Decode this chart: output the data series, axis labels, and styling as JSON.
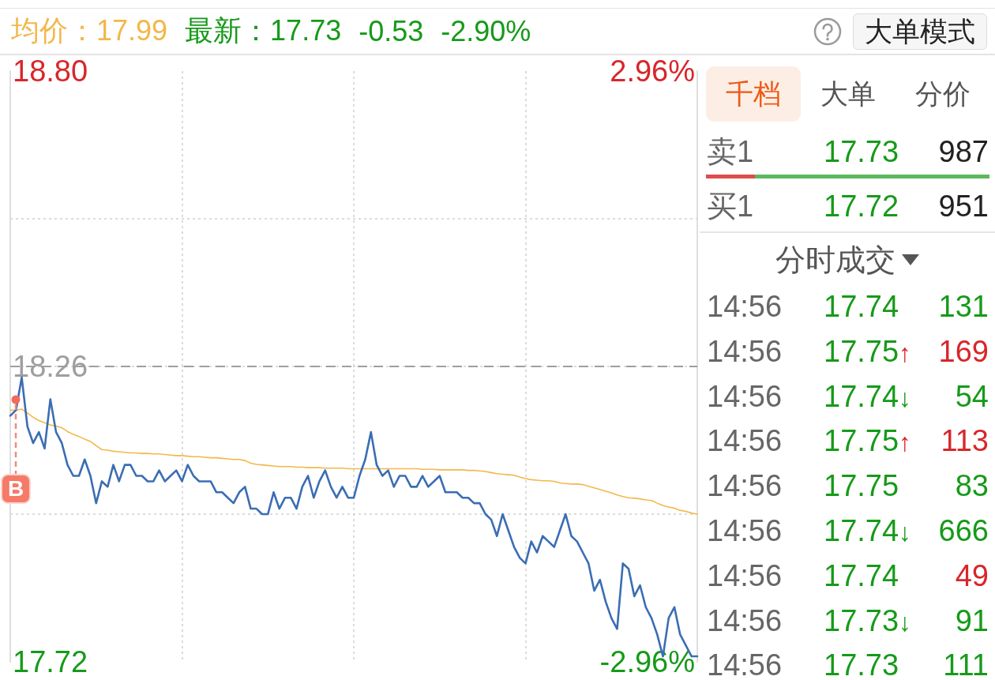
{
  "chart_data": [
    {
      "type": "line",
      "annotations": [
        "均价：17.99",
        "最新：17.73",
        "-0.53",
        "-2.90%",
        {
          "text": "B",
          "y": 18.2
        }
      ],
      "categories": [
        null,
        null,
        null,
        null,
        null,
        null,
        null,
        null,
        null,
        null,
        null,
        null,
        null,
        null,
        null,
        null,
        null,
        null,
        null,
        null,
        null,
        null,
        null,
        null,
        null,
        null,
        null,
        null,
        null,
        null,
        null,
        null,
        null,
        null,
        null,
        null,
        null,
        null,
        null,
        null,
        null,
        null,
        null,
        null,
        null,
        null,
        null,
        null,
        null,
        null,
        null,
        null,
        null,
        null,
        null,
        null,
        null,
        null,
        null,
        null,
        null,
        null,
        null,
        null,
        null,
        null,
        null,
        null,
        null,
        null,
        null,
        null,
        null,
        null,
        null,
        null,
        null,
        null,
        null,
        null,
        null,
        null,
        null,
        null,
        null,
        null,
        null,
        null,
        null,
        null,
        null,
        null,
        null,
        null,
        null,
        null,
        null,
        null,
        null,
        null,
        null,
        null,
        null,
        null,
        null,
        null,
        null,
        null,
        null,
        null,
        null,
        null,
        null,
        null,
        null,
        null,
        null,
        null,
        null,
        null,
        null
      ],
      "series": [
        {
          "color": "#3b6db3",
          "values": [
            18.17,
            18.18,
            18.24,
            18.15,
            18.12,
            18.14,
            18.11,
            18.2,
            18.14,
            18.12,
            18.08,
            18.06,
            18.06,
            18.09,
            18.06,
            18.01,
            18.05,
            18.04,
            18.08,
            18.05,
            18.08,
            18.08,
            18.06,
            18.06,
            18.05,
            18.05,
            18.07,
            18.05,
            18.06,
            18.07,
            18.05,
            18.08,
            18.06,
            18.05,
            18.05,
            18.05,
            18.03,
            18.03,
            18.02,
            18.01,
            18.03,
            18.04,
            18,
            18,
            17.99,
            17.99,
            18.03,
            18,
            18.02,
            18.02,
            18,
            18.04,
            18.06,
            18.02,
            18.05,
            18.07,
            18.04,
            18.02,
            18.04,
            18.02,
            18.02,
            18.06,
            18.09,
            18.14,
            18.08,
            18.06,
            18.07,
            18.04,
            18.06,
            18.06,
            18.04,
            18.04,
            18.06,
            18.04,
            18.05,
            18.06,
            18.03,
            18.03,
            18.03,
            18.02,
            18.02,
            18.01,
            18.01,
            17.99,
            17.98,
            17.95,
            17.99,
            17.96,
            17.93,
            17.91,
            17.9,
            17.94,
            17.92,
            17.95,
            17.94,
            17.93,
            17.96,
            17.99,
            17.95,
            17.94,
            17.92,
            17.9,
            17.85,
            17.87,
            17.83,
            17.8,
            17.78,
            17.9,
            17.89,
            17.84,
            17.86,
            17.82,
            17.8,
            17.77,
            17.73,
            17.8,
            17.82,
            17.77,
            17.75,
            17.73,
            17.73
          ]
        },
        {
          "color": "#f2b84b",
          "values": [
            18.18,
            18.18,
            18.182,
            18.175,
            18.167,
            18.161,
            18.157,
            18.153,
            18.151,
            18.148,
            18.141,
            18.136,
            18.132,
            18.127,
            18.123,
            18.115,
            18.108,
            18.107,
            18.105,
            18.104,
            18.103,
            18.102,
            18.102,
            18.101,
            18.101,
            18.1,
            18.1,
            18.099,
            18.098,
            18.097,
            18.097,
            18.096,
            18.095,
            18.095,
            18.094,
            18.093,
            18.093,
            18.092,
            18.091,
            18.09,
            18.09,
            18.088,
            18.083,
            18.081,
            18.08,
            18.079,
            18.078,
            18.077,
            18.077,
            18.077,
            18.076,
            18.076,
            18.075,
            18.075,
            18.075,
            18.074,
            18.074,
            18.074,
            18.074,
            18.073,
            18.073,
            18.073,
            18.073,
            18.073,
            18.073,
            18.073,
            18.073,
            18.073,
            18.073,
            18.073,
            18.073,
            18.073,
            18.072,
            18.072,
            18.072,
            18.071,
            18.071,
            18.071,
            18.071,
            18.071,
            18.07,
            18.07,
            18.069,
            18.068,
            18.066,
            18.064,
            18.063,
            18.062,
            18.061,
            18.058,
            18.055,
            18.053,
            18.052,
            18.051,
            18.051,
            18.05,
            18.047,
            18.046,
            18.045,
            18.045,
            18.044,
            18.041,
            18.038,
            18.035,
            18.032,
            18.029,
            18.025,
            18.022,
            18.02,
            18.019,
            18.018,
            18.016,
            18.015,
            18.01,
            18.006,
            18.003,
            18.001,
            17.997,
            17.995,
            17.992,
            17.99
          ]
        }
      ],
      "ylim": [
        17.72,
        18.8
      ],
      "yticks": [
        17.72,
        {
          "value": 17.99,
          "label": null
        },
        18.26,
        {
          "value": 18.53,
          "label": null
        },
        {
          "value": 18.8,
          "label": "18.80"
        }
      ],
      "y2lim": [
        -2.96,
        2.96
      ],
      "y2ticks": [
        {
          "value": -2.96,
          "label": "-2.96%"
        },
        {
          "value": 2.96,
          "label": "2.96%"
        }
      ],
      "ref_lines": [
        {
          "axis": "y",
          "value": 18.26,
          "color": "#9e9e9e",
          "line_style": "dashed"
        }
      ],
      "grid": true
    },
    {
      "type": "other",
      "annotations": [
        "大单模式",
        "千档",
        "大单",
        "分价",
        "卖1",
        "17.73",
        "987",
        "买1",
        "17.72",
        "951"
      ]
    },
    {
      "type": "other",
      "title": "分时成交",
      "annotations": [
        "14:56",
        "17.74",
        "131",
        "14:56",
        "17.75↑",
        "169",
        "14:56",
        "17.74↓",
        "54",
        "14:56",
        "17.75↑",
        "113",
        "14:56",
        "17.75",
        "83",
        "14:56",
        "17.74↓",
        "666",
        "14:56",
        "17.74",
        "49",
        "14:56",
        "17.73↓",
        "91",
        "14:56",
        "17.73",
        "111"
      ]
    }
  ]
}
